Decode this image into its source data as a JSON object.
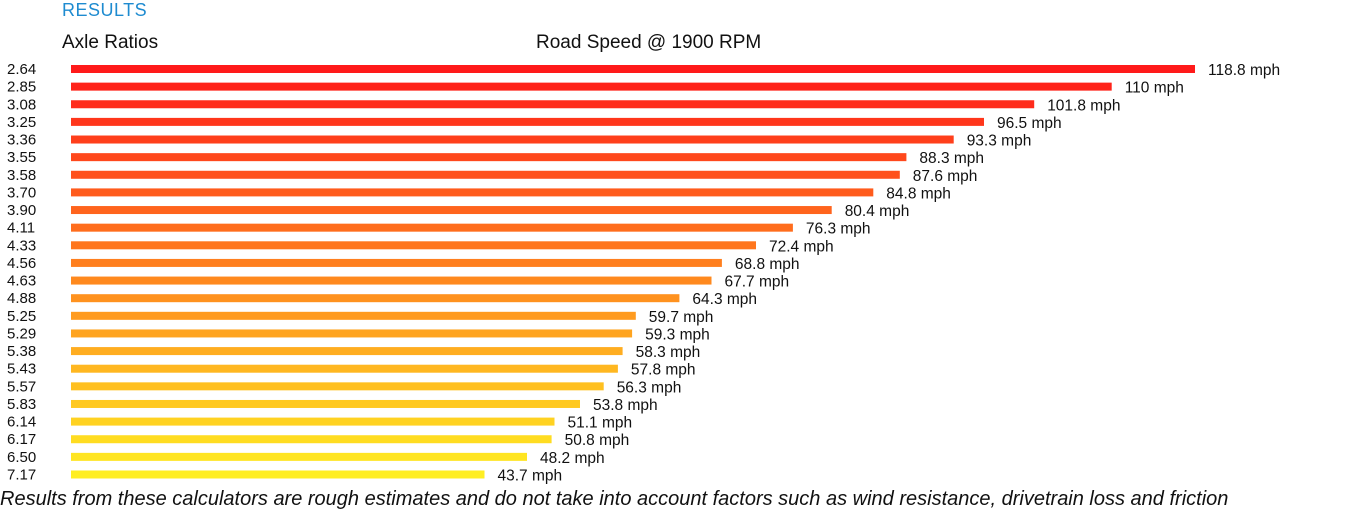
{
  "header": {
    "section_title": "RESULTS",
    "column_label": "Axle Ratios",
    "chart_title": "Road Speed @ 1900 RPM"
  },
  "footnote": "Results from these calculators are rough estimates and do not take into account factors such as wind resistance, drivetrain loss and friction",
  "chart_data": {
    "type": "bar",
    "orientation": "horizontal",
    "title": "Road Speed @ 1900 RPM",
    "ylabel": "Axle Ratios",
    "xlabel": "",
    "unit": "mph",
    "xlim": [
      0,
      118.8
    ],
    "grid": false,
    "categories": [
      "2.64",
      "2.85",
      "3.08",
      "3.25",
      "3.36",
      "3.55",
      "3.58",
      "3.70",
      "3.90",
      "4.11",
      "4.33",
      "4.56",
      "4.63",
      "4.88",
      "5.25",
      "5.29",
      "5.38",
      "5.43",
      "5.57",
      "5.83",
      "6.14",
      "6.17",
      "6.50",
      "7.17"
    ],
    "values": [
      118.8,
      110,
      101.8,
      96.5,
      93.3,
      88.3,
      87.6,
      84.8,
      80.4,
      76.3,
      72.4,
      68.8,
      67.7,
      64.3,
      59.7,
      59.3,
      58.3,
      57.8,
      56.3,
      53.8,
      51.1,
      50.8,
      48.2,
      43.7
    ],
    "labels": [
      "118.8 mph",
      "110 mph",
      "101.8 mph",
      "96.5 mph",
      "93.3 mph",
      "88.3 mph",
      "87.6 mph",
      "84.8 mph",
      "80.4 mph",
      "76.3 mph",
      "72.4 mph",
      "68.8 mph",
      "67.7 mph",
      "64.3 mph",
      "59.7 mph",
      "59.3 mph",
      "58.3 mph",
      "57.8 mph",
      "56.3 mph",
      "53.8 mph",
      "51.1 mph",
      "50.8 mph",
      "48.2 mph",
      "43.7 mph"
    ],
    "colors": {
      "start": "#ff1a1a",
      "end": "#ffee22"
    }
  }
}
